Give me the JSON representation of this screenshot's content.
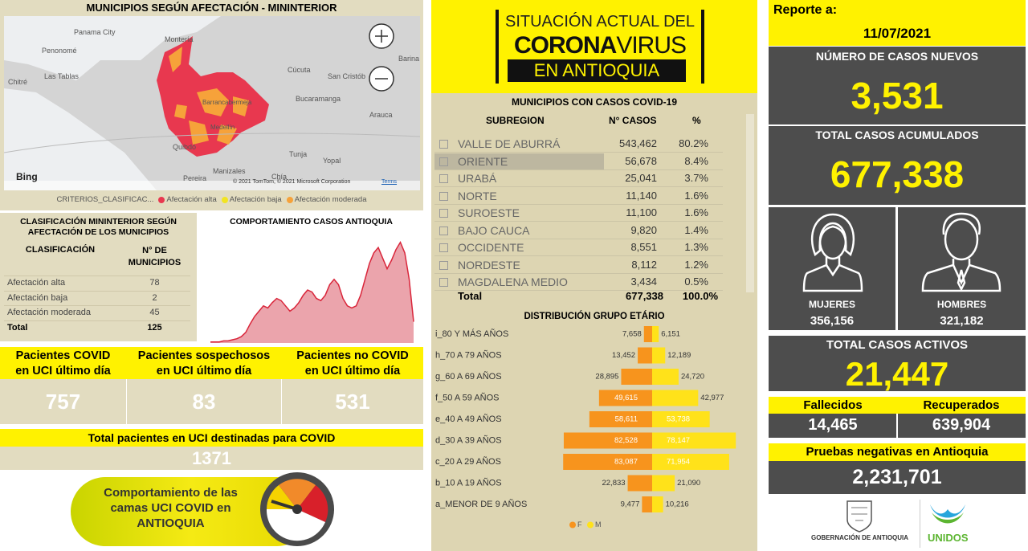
{
  "map": {
    "title": "MUNICIPIOS SEGÚN AFECTACIÓN - MININTERIOR",
    "places": [
      "Panama City",
      "Penonomé",
      "Las Tablas",
      "Chitré",
      "Montería",
      "Cúcuta",
      "San Cristób",
      "Barina",
      "Bucaramanga",
      "Barrancabermeja",
      "Medellín",
      "Quibdó",
      "Arauca",
      "Tunja",
      "Yopal",
      "Manizales",
      "Pereira",
      "Chía"
    ],
    "bing": "Bing",
    "attribution": "© 2021 TomTom, © 2021 Microsoft Corporation",
    "terms": "Terms",
    "legend_title": "CRITERIOS_CLASIFICAC...",
    "legend": [
      {
        "label": "Afectación alta",
        "color": "#e8384f"
      },
      {
        "label": "Afectación baja",
        "color": "#f2e422"
      },
      {
        "label": "Afectación moderada",
        "color": "#f6a23a"
      }
    ]
  },
  "classification": {
    "title": "CLASIFICACIÓN MININTERIOR SEGÚN AFECTACIÓN DE LOS MUNICIPIOS",
    "headers": [
      "CLASIFICACIÓN",
      "N° DE MUNICIPIOS"
    ],
    "rows": [
      [
        "Afectación alta",
        "78"
      ],
      [
        "Afectación baja",
        "2"
      ],
      [
        "Afectación moderada",
        "45"
      ]
    ],
    "total": [
      "Total",
      "125"
    ]
  },
  "uci": {
    "cards": [
      {
        "label": [
          "Pacientes COVID",
          "en UCI último día"
        ],
        "value": "757"
      },
      {
        "label": [
          "Pacientes sospechosos",
          "en UCI último día"
        ],
        "value": "83"
      },
      {
        "label": [
          "Pacientes no COVID",
          "en UCI último día"
        ],
        "value": "531"
      }
    ],
    "total_label": "Total pacientes en UCI destinadas para COVID",
    "total_value": "1371"
  },
  "banner": {
    "lines": [
      "Comportamiento de las",
      "camas UCI COVID en",
      "ANTIOQUIA"
    ]
  },
  "header": {
    "line1": "SITUACIÓN ACTUAL DEL",
    "corona": "CORONA",
    "virus": "VIRUS",
    "line3": "EN ANTIOQUIA"
  },
  "subregions": {
    "title": "MUNICIPIOS CON CASOS COVID-19",
    "headers": [
      "SUBREGION",
      "N° CASOS",
      "%"
    ],
    "selected_row": 1,
    "rows": [
      [
        "VALLE DE ABURRÁ",
        "543,462",
        "80.2%"
      ],
      [
        "ORIENTE",
        "56,678",
        "8.4%"
      ],
      [
        "URABÁ",
        "25,041",
        "3.7%"
      ],
      [
        "NORTE",
        "11,140",
        "1.6%"
      ],
      [
        "SUROESTE",
        "11,100",
        "1.6%"
      ],
      [
        "BAJO CAUCA",
        "9,820",
        "1.4%"
      ],
      [
        "OCCIDENTE",
        "8,551",
        "1.3%"
      ],
      [
        "NORDESTE",
        "8,112",
        "1.2%"
      ],
      [
        "MAGDALENA MEDIO",
        "3,434",
        "0.5%"
      ]
    ],
    "total": [
      "Total",
      "677,338",
      "100.0%"
    ]
  },
  "report": {
    "label": "Reporte a:",
    "date": "11/07/2021",
    "new_cases_title": "NÚMERO DE CASOS NUEVOS",
    "new_cases": "3,531",
    "total_title": "TOTAL CASOS ACUMULADOS",
    "total": "677,338",
    "women_label": "MUJERES",
    "women": "356,156",
    "men_label": "HOMBRES",
    "men": "321,182",
    "active_title": "TOTAL CASOS ACTIVOS",
    "active": "21,447",
    "deaths_label": "Fallecidos",
    "deaths": "14,465",
    "recovered_label": "Recuperados",
    "recovered": "639,904",
    "negative_label": "Pruebas negativas en Antioquia",
    "negative": "2,231,701"
  },
  "footer": {
    "gov": "GOBERNACIÓN DE ANTIOQUIA",
    "unidos": "UNIDOS"
  },
  "chart_data": [
    {
      "type": "area",
      "title": "COMPORTAMIENTO CASOS ANTIOQUIA",
      "values": [
        1,
        1,
        1,
        2,
        2,
        3,
        4,
        6,
        10,
        18,
        25,
        30,
        35,
        33,
        38,
        42,
        40,
        35,
        30,
        33,
        38,
        45,
        50,
        48,
        42,
        40,
        45,
        55,
        60,
        55,
        42,
        35,
        33,
        35,
        45,
        60,
        75,
        85,
        90,
        80,
        70,
        78,
        88,
        95,
        85,
        60,
        20
      ],
      "ylim": [
        0,
        100
      ],
      "color": "#d9253a",
      "fill": "#eba4ac"
    },
    {
      "type": "butterfly",
      "title": "DISTRIBUCIÓN GRUPO ETÁRIO",
      "categories": [
        "i_80 Y MÁS AÑOS",
        "h_70 A 79 AÑOS",
        "g_60 A 69 AÑOS",
        "f_50 A 59 AÑOS",
        "e_40 A 49 AÑOS",
        "d_30 A 39 AÑOS",
        "c_20 A 29 AÑOS",
        "b_10 A 19 AÑOS",
        "a_MENOR DE 9 AÑOS"
      ],
      "xlim": [
        0,
        90000
      ],
      "series": [
        {
          "name": "F",
          "color": "#f7941d",
          "values": [
            7658,
            13452,
            28895,
            49615,
            58611,
            82528,
            83087,
            22833,
            9477
          ],
          "value_labels": [
            "7,658",
            "13,452",
            "28,895",
            "49,615",
            "58,611",
            "82,528",
            "83,087",
            "22,833",
            "9,477"
          ]
        },
        {
          "name": "M",
          "color": "#ffe21a",
          "values": [
            6151,
            12189,
            24720,
            42977,
            53738,
            78147,
            71954,
            21090,
            10216
          ],
          "value_labels": [
            "6,151",
            "12,189",
            "24,720",
            "42,977",
            "53,738",
            "78,147",
            "71,954",
            "21,090",
            "10,216"
          ]
        }
      ]
    }
  ]
}
